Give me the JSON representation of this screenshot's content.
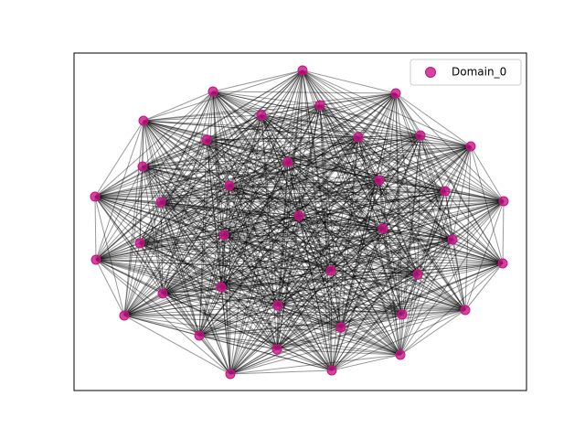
{
  "legend": {
    "label": "Domain_0",
    "color": "#c71585"
  }
}
